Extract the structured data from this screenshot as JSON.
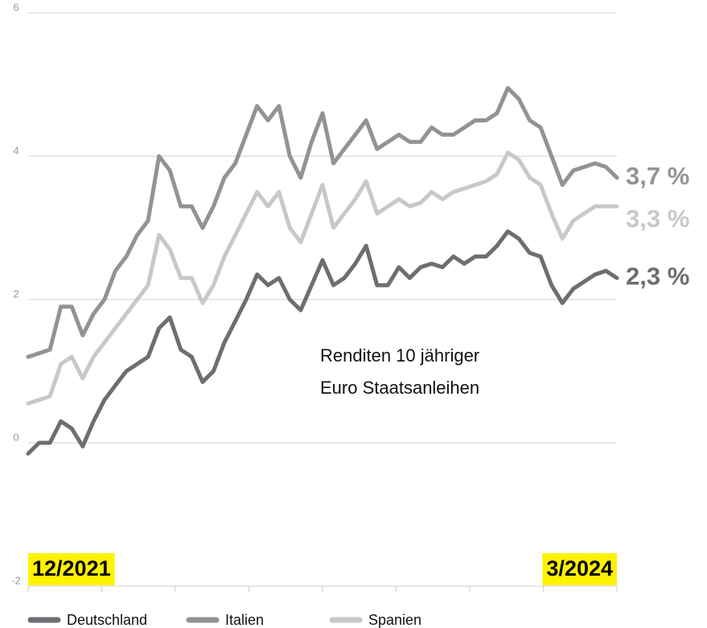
{
  "chart_data": {
    "type": "line",
    "annotation": [
      "Renditen 10 jähriger",
      "Euro Staatsanleihen"
    ],
    "categories": [
      "12/2021",
      null,
      null,
      null,
      null,
      null,
      null,
      null,
      null,
      null,
      null,
      null,
      null,
      null,
      null,
      null,
      null,
      null,
      null,
      null,
      null,
      null,
      null,
      null,
      null,
      null,
      null,
      null,
      null,
      null,
      null,
      null,
      null,
      null,
      null,
      null,
      null,
      null,
      null,
      null,
      null,
      null,
      null,
      null,
      null,
      null,
      null,
      null,
      null,
      null,
      null,
      null,
      null,
      null,
      "3/2024"
    ],
    "series": [
      {
        "name": "Deutschland",
        "color": "#6d6e72",
        "end_label": "2,3 %",
        "values": [
          -0.15,
          0,
          0,
          0.3,
          0.2,
          -0.05,
          0.3,
          0.6,
          0.8,
          1.0,
          1.1,
          1.2,
          1.6,
          1.75,
          1.3,
          1.2,
          0.85,
          1.0,
          1.4,
          1.7,
          2.0,
          2.35,
          2.2,
          2.3,
          2.0,
          1.85,
          2.2,
          2.55,
          2.2,
          2.3,
          2.5,
          2.75,
          2.2,
          2.2,
          2.45,
          2.3,
          2.45,
          2.5,
          2.45,
          2.6,
          2.5,
          2.6,
          2.6,
          2.75,
          2.95,
          2.85,
          2.65,
          2.6,
          2.2,
          1.95,
          2.15,
          2.25,
          2.35,
          2.4,
          2.3
        ]
      },
      {
        "name": "Italien",
        "color": "#939393",
        "end_label": "3,7 %",
        "values": [
          1.2,
          1.25,
          1.3,
          1.9,
          1.9,
          1.5,
          1.8,
          2.0,
          2.4,
          2.6,
          2.9,
          3.1,
          4.0,
          3.8,
          3.3,
          3.3,
          3.0,
          3.3,
          3.7,
          3.9,
          4.3,
          4.7,
          4.5,
          4.7,
          4.0,
          3.7,
          4.2,
          4.6,
          3.9,
          4.1,
          4.3,
          4.5,
          4.1,
          4.2,
          4.3,
          4.2,
          4.2,
          4.4,
          4.3,
          4.3,
          4.4,
          4.5,
          4.5,
          4.6,
          4.95,
          4.8,
          4.5,
          4.4,
          4.0,
          3.6,
          3.8,
          3.85,
          3.9,
          3.85,
          3.7
        ]
      },
      {
        "name": "Spanien",
        "color": "#c8c8c8",
        "end_label": "3,3 %",
        "values": [
          0.55,
          0.6,
          0.65,
          1.1,
          1.2,
          0.9,
          1.2,
          1.4,
          1.6,
          1.8,
          2.0,
          2.2,
          2.9,
          2.7,
          2.3,
          2.3,
          1.95,
          2.2,
          2.6,
          2.9,
          3.2,
          3.5,
          3.3,
          3.5,
          3.0,
          2.8,
          3.2,
          3.6,
          3.0,
          3.2,
          3.4,
          3.65,
          3.2,
          3.3,
          3.4,
          3.3,
          3.35,
          3.5,
          3.4,
          3.5,
          3.55,
          3.6,
          3.65,
          3.75,
          4.05,
          3.95,
          3.7,
          3.6,
          3.2,
          2.85,
          3.1,
          3.2,
          3.3,
          3.3,
          3.3
        ]
      }
    ],
    "ylim": [
      -2,
      6
    ],
    "yticks": [
      -2,
      0,
      2,
      4,
      6
    ],
    "grid": true,
    "legend": "bottom",
    "highlight_color": "#fff200"
  }
}
